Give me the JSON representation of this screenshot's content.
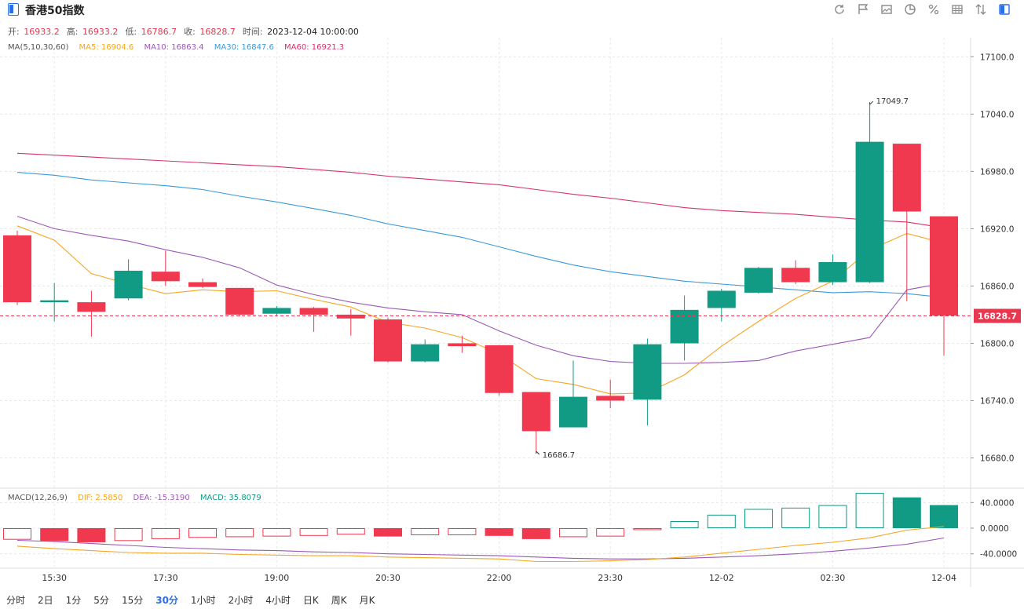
{
  "header": {
    "title": "香港50指数"
  },
  "toolbar": [
    "refresh-icon",
    "flag-icon",
    "image-icon",
    "pie-icon",
    "percent-icon",
    "grid-icon",
    "sort-icon",
    "sidebar-icon"
  ],
  "ohlc": {
    "open_label": "开:",
    "open": "16933.2",
    "high_label": "高:",
    "high": "16933.2",
    "low_label": "低:",
    "low": "16786.7",
    "close_label": "收:",
    "close": "16828.7",
    "time_label": "时间:",
    "time": "2023-12-04 10:00:00"
  },
  "ma_legend": {
    "title": "MA(5,10,30,60)",
    "ma5": "MA5: 16904.6",
    "ma10": "MA10: 16863.4",
    "ma30": "MA30: 16847.6",
    "ma60": "MA60: 16921.3"
  },
  "macd_legend": {
    "title": "MACD(12,26,9)",
    "dif": "DIF: 2.5850",
    "dea": "DEA: -15.3190",
    "macd": "MACD: 35.8079"
  },
  "colors": {
    "up": "#119a84",
    "down": "#f0384e",
    "ma5": "#f5a623",
    "ma10": "#9b59b6",
    "ma30": "#3a9ad9",
    "ma60": "#d6336c",
    "last": "#e8384f"
  },
  "periods": [
    "分时",
    "2日",
    "1分",
    "5分",
    "15分",
    "30分",
    "1小时",
    "2小时",
    "4小时",
    "日K",
    "周K",
    "月K"
  ],
  "active_period": "30分",
  "chart_data": {
    "type": "candlestick",
    "ylim": [
      16650,
      17120
    ],
    "yticks": [
      16680,
      16740,
      16800,
      16860,
      16920,
      16980,
      17040,
      17100
    ],
    "ytick_labels": [
      "16680.0",
      "16740.0",
      "16800.0",
      "16860.0",
      "16920.0",
      "16980.0",
      "17040.0",
      "17100.0"
    ],
    "last_price": 16828.7,
    "last_label": "16828.7",
    "max_label": "17049.7",
    "min_label": "16686.7",
    "xtick_labels": [
      "15:30",
      "17:30",
      "19:00",
      "20:30",
      "22:00",
      "23:30",
      "12-02",
      "02:30",
      "12-04"
    ],
    "xtick_index": [
      1,
      4,
      7,
      10,
      13,
      16,
      19,
      22,
      25
    ],
    "candles": [
      {
        "o": 16913,
        "h": 16918,
        "l": 16840,
        "c": 16843
      },
      {
        "o": 16843,
        "h": 16863,
        "l": 16823,
        "c": 16845
      },
      {
        "o": 16843,
        "h": 16855,
        "l": 16807,
        "c": 16833
      },
      {
        "o": 16847,
        "h": 16888,
        "l": 16845,
        "c": 16876
      },
      {
        "o": 16875,
        "h": 16897,
        "l": 16860,
        "c": 16865
      },
      {
        "o": 16864,
        "h": 16868,
        "l": 16858,
        "c": 16859
      },
      {
        "o": 16858,
        "h": 16858,
        "l": 16828,
        "c": 16830
      },
      {
        "o": 16831,
        "h": 16839,
        "l": 16829,
        "c": 16837
      },
      {
        "o": 16837,
        "h": 16838,
        "l": 16812,
        "c": 16830
      },
      {
        "o": 16830,
        "h": 16836,
        "l": 16808,
        "c": 16826
      },
      {
        "o": 16825,
        "h": 16827,
        "l": 16780,
        "c": 16781
      },
      {
        "o": 16781,
        "h": 16804,
        "l": 16780,
        "c": 16799
      },
      {
        "o": 16800,
        "h": 16808,
        "l": 16790,
        "c": 16797
      },
      {
        "o": 16798,
        "h": 16798,
        "l": 16745,
        "c": 16748
      },
      {
        "o": 16749,
        "h": 16749,
        "l": 16687,
        "c": 16708
      },
      {
        "o": 16712,
        "h": 16782,
        "l": 16712,
        "c": 16744
      },
      {
        "o": 16745,
        "h": 16762,
        "l": 16732,
        "c": 16740
      },
      {
        "o": 16741,
        "h": 16805,
        "l": 16714,
        "c": 16799
      },
      {
        "o": 16800,
        "h": 16850,
        "l": 16782,
        "c": 16835
      },
      {
        "o": 16837,
        "h": 16857,
        "l": 16823,
        "c": 16855
      },
      {
        "o": 16853,
        "h": 16880,
        "l": 16852,
        "c": 16879
      },
      {
        "o": 16879,
        "h": 16887,
        "l": 16862,
        "c": 16864
      },
      {
        "o": 16864,
        "h": 16893,
        "l": 16861,
        "c": 16885
      },
      {
        "o": 16864,
        "h": 17050,
        "l": 16863,
        "c": 17011
      },
      {
        "o": 17009,
        "h": 17009,
        "l": 16844,
        "c": 16938
      },
      {
        "o": 16933,
        "h": 16933,
        "l": 16787,
        "c": 16829
      }
    ],
    "ma5": [
      16923,
      16908,
      16873,
      16862,
      16852,
      16856,
      16854,
      16855,
      16846,
      16838,
      16822,
      16816,
      16806,
      16789,
      16763,
      16757,
      16747,
      16748,
      16767,
      16797,
      16823,
      16847,
      16865,
      16898,
      16915,
      16905
    ],
    "ma10": [
      16933,
      16920,
      16913,
      16907,
      16898,
      16890,
      16879,
      16861,
      16851,
      16843,
      16837,
      16833,
      16830,
      16813,
      16798,
      16787,
      16781,
      16779,
      16779,
      16780,
      16782,
      16792,
      16799,
      16806,
      16856,
      16863
    ],
    "ma30": [
      16979,
      16976,
      16971,
      16968,
      16965,
      16961,
      16954,
      16948,
      16941,
      16934,
      16925,
      16918,
      16911,
      16901,
      16891,
      16882,
      16875,
      16870,
      16865,
      16862,
      16859,
      16856,
      16853,
      16854,
      16852,
      16848
    ],
    "ma60": [
      16999,
      16997,
      16995,
      16993,
      16991,
      16989,
      16987,
      16985,
      16982,
      16979,
      16975,
      16972,
      16969,
      16966,
      16961,
      16956,
      16952,
      16947,
      16942,
      16939,
      16937,
      16935,
      16932,
      16929,
      16927,
      16921
    ],
    "macd": {
      "ylim": [
        -60,
        60
      ],
      "yticks": [
        40,
        0,
        -40
      ],
      "ytick_labels": [
        "40.0000",
        "0.0000",
        "-40.0000"
      ],
      "hist": [
        -18,
        -20,
        -22,
        -20,
        -17,
        -15,
        -14,
        -13,
        -12,
        -10,
        -13,
        -11,
        -11,
        -12,
        -17,
        -14,
        -13,
        -3,
        11,
        21,
        30,
        32,
        36,
        55,
        48,
        36
      ],
      "dif": [
        -28,
        -32,
        -35,
        -38,
        -39,
        -39,
        -41,
        -42,
        -43,
        -43,
        -45,
        -46,
        -47,
        -48,
        -52,
        -52,
        -51,
        -49,
        -45,
        -39,
        -33,
        -27,
        -22,
        -15,
        -3,
        2.6
      ],
      "dea": [
        -19,
        -21,
        -24,
        -27,
        -30,
        -32,
        -34,
        -35,
        -37,
        -38,
        -40,
        -41,
        -42,
        -43,
        -45,
        -47,
        -48,
        -48,
        -47,
        -45,
        -43,
        -40,
        -36,
        -31,
        -25,
        -15.3
      ]
    }
  }
}
